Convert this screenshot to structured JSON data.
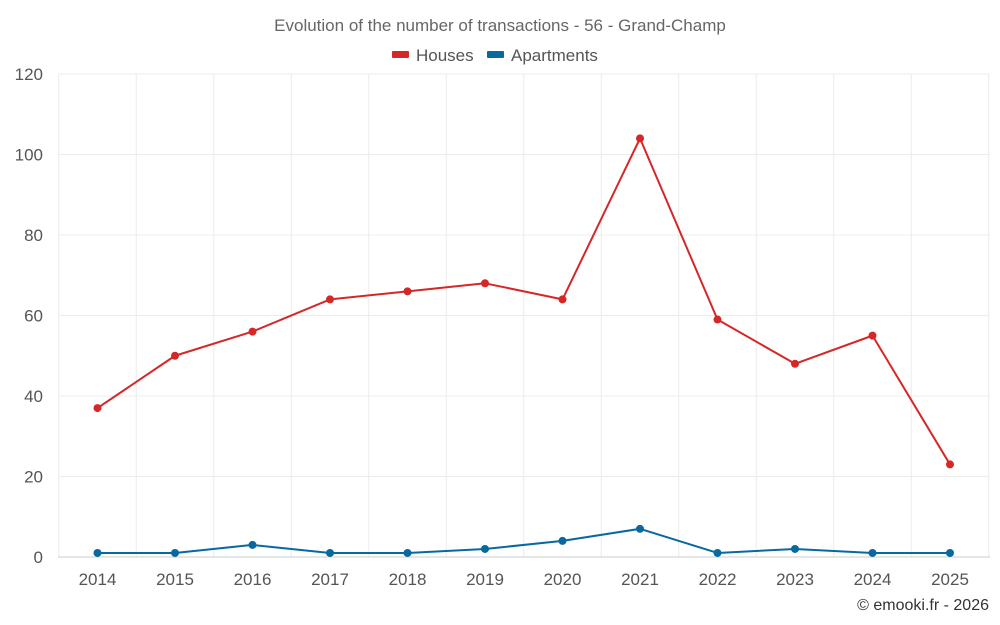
{
  "chart_data": {
    "type": "line",
    "title": "Evolution of the number of transactions - 56 - Grand-Champ",
    "categories": [
      "2014",
      "2015",
      "2016",
      "2017",
      "2018",
      "2019",
      "2020",
      "2021",
      "2022",
      "2023",
      "2024",
      "2025"
    ],
    "series": [
      {
        "name": "Houses",
        "color": "#d62728",
        "values": [
          37,
          50,
          56,
          64,
          66,
          68,
          64,
          104,
          59,
          48,
          55,
          23
        ]
      },
      {
        "name": "Apartments",
        "color": "#0868a0",
        "values": [
          1,
          1,
          3,
          1,
          1,
          2,
          4,
          7,
          1,
          2,
          1,
          1
        ]
      }
    ],
    "ylim": [
      0,
      120
    ],
    "yticks": [
      0,
      20,
      40,
      60,
      80,
      100,
      120
    ],
    "grid": true,
    "legend_position": "top-center",
    "xlabel": "",
    "ylabel": ""
  },
  "credit": "© emooki.fr - 2026"
}
